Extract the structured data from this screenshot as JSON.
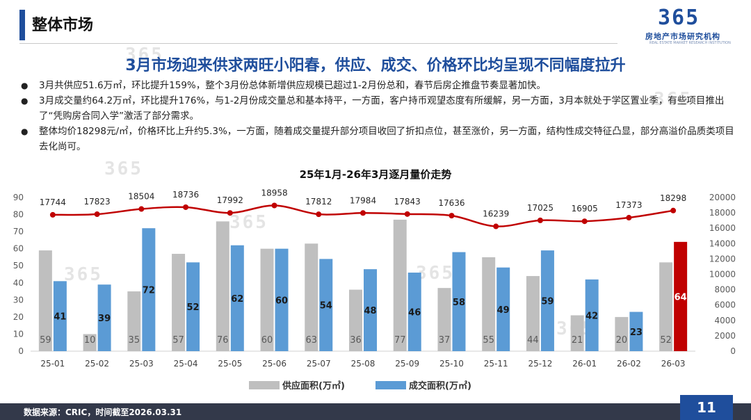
{
  "header": {
    "title": "整体市场"
  },
  "logo": {
    "number": "365",
    "text": "房地产市场研究机构",
    "subtext": "REAL ESTATE MARKET RESEARCH INSTITUTION"
  },
  "headline": "3月市场迎来供求两旺小阳春，供应、成交、价格环比均呈现不同幅度拉升",
  "bullets": [
    "3月共供应51.6万㎡，环比提升159%，整个3月份总体新增供应规模已超过1-2月份总和，春节后房企推盘节奏显著加快。",
    "3月成交量约64.2万㎡，环比提升176%，与1-2月份成交量总和基本持平，一方面，客户持币观望态度有所缓解，另一方面，3月本就处于学区置业季，有些项目推出了“凭购房合同入学”激活了部分需求。",
    "整体均价18298元/㎡，价格环比上升约5.3%，一方面，随着成交量提升部分项目收回了折扣点位，甚至涨价，另一方面，结构性成交特征凸显，部分高溢价品质类项目去化尚可。"
  ],
  "chart_data": {
    "type": "bar",
    "title": "25年1月-26年3月逐月量价走势",
    "categories": [
      "25-01",
      "25-02",
      "25-03",
      "25-04",
      "25-05",
      "25-06",
      "25-07",
      "25-08",
      "25-09",
      "25-10",
      "25-11",
      "25-12",
      "26-01",
      "26-02",
      "26-03"
    ],
    "series": [
      {
        "name": "供应面积(万㎡)",
        "type": "bar",
        "axis": "left",
        "color": "#bfbfbf",
        "values": [
          59,
          10,
          35,
          57,
          76,
          60,
          63,
          36,
          77,
          37,
          55,
          44,
          21,
          20,
          52
        ]
      },
      {
        "name": "成交面积(万㎡)",
        "type": "bar",
        "axis": "left",
        "color": "#5b9bd5",
        "highlight_last_color": "#c00000",
        "values": [
          41,
          39,
          72,
          52,
          62,
          60,
          54,
          48,
          46,
          58,
          49,
          59,
          42,
          23,
          64
        ]
      },
      {
        "type": "line",
        "axis": "right",
        "color": "#c00000",
        "values": [
          17744,
          17823,
          18504,
          18736,
          17992,
          18958,
          17812,
          17984,
          17843,
          17636,
          16239,
          17025,
          16905,
          17373,
          18298
        ]
      }
    ],
    "y_left": {
      "min": 0,
      "max": 90,
      "ticks": [
        0,
        10,
        20,
        30,
        40,
        50,
        60,
        70,
        80,
        90
      ]
    },
    "y_right": {
      "min": 0,
      "max": 20000,
      "ticks": [
        0,
        2000,
        4000,
        6000,
        8000,
        10000,
        12000,
        14000,
        16000,
        18000,
        20000
      ]
    },
    "legend_position": "bottom",
    "grid": false
  },
  "footer": {
    "source": "数据来源：CRIC，时间截至2026.03.31",
    "page": "11"
  }
}
